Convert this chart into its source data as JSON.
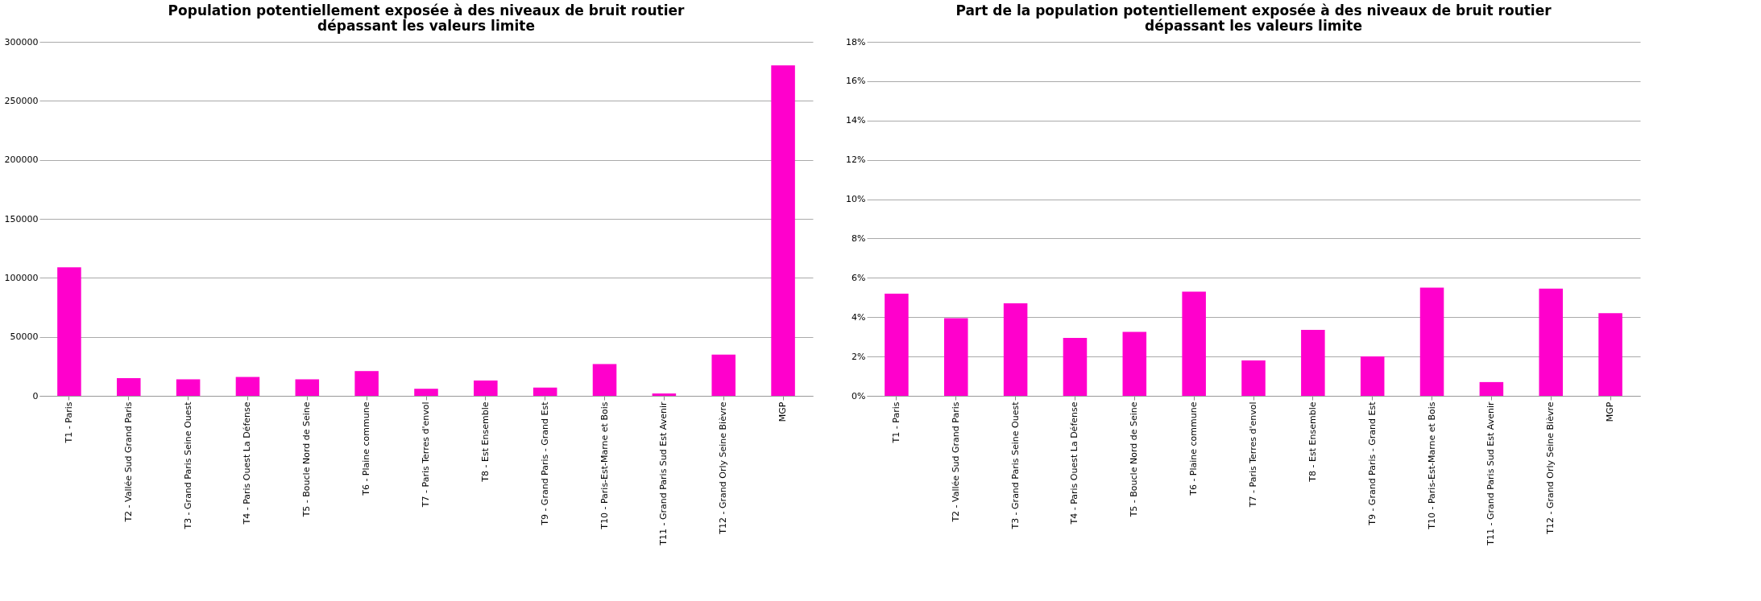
{
  "chart_data": [
    {
      "type": "bar",
      "title": "Population potentiellement exposée à des niveaux de bruit routier\ndépassant les valeurs limite",
      "categories": [
        "T1 - Paris",
        "T2 - Vallée Sud Grand Paris",
        "T3 - Grand Paris Seine Ouest",
        "T4 - Paris Ouest La Défense",
        "T5 - Boucle Nord de Seine",
        "T6 - Plaine commune",
        "T7 - Paris Terres d'envol",
        "T8 - Est Ensemble",
        "T9 - Grand Paris - Grand Est",
        "T10 - Paris-Est-Marne et Bois",
        "T11 - Grand Paris Sud Est Avenir",
        "T12 - Grand Orly Seine Bièvre",
        "MGP"
      ],
      "values": [
        109000,
        15000,
        14000,
        16000,
        14000,
        21000,
        6000,
        13000,
        7000,
        27000,
        2000,
        35000,
        280000
      ],
      "color": "#ff00cc",
      "ylim": [
        0,
        300000
      ],
      "yticks": [
        0,
        50000,
        100000,
        150000,
        200000,
        250000,
        300000
      ],
      "grid": "y"
    },
    {
      "type": "bar",
      "title": "Part de la population potentiellement exposée à des niveaux de bruit routier\ndépassant les valeurs limite",
      "categories": [
        "T1 - Paris",
        "T2 - Vallée Sud Grand Paris",
        "T3 - Grand Paris Seine Ouest",
        "T4 - Paris Ouest La Défense",
        "T5 - Boucle Nord de Seine",
        "T6 - Plaine commune",
        "T7 - Paris Terres d'envol",
        "T8 - Est Ensemble",
        "T9 - Grand Paris - Grand Est",
        "T10 - Paris-Est-Marne et Bois",
        "T11 - Grand Paris Sud Est Avenir",
        "T12 - Grand Orly Seine Bièvre",
        "MGP"
      ],
      "values": [
        5.2,
        3.95,
        4.7,
        2.95,
        3.25,
        5.3,
        1.8,
        3.35,
        2.0,
        5.5,
        0.7,
        5.45,
        4.2
      ],
      "color": "#ff00cc",
      "ylim": [
        0,
        18
      ],
      "yticks": [
        {
          "value": 0,
          "label": "0%"
        },
        {
          "value": 2,
          "label": "2%"
        },
        {
          "value": 4,
          "label": "4%"
        },
        {
          "value": 6,
          "label": "6%"
        },
        {
          "value": 8,
          "label": "8%"
        },
        {
          "value": 10,
          "label": "10%"
        },
        {
          "value": 12,
          "label": "12%"
        },
        {
          "value": 14,
          "label": "14%"
        },
        {
          "value": 16,
          "label": "16%"
        },
        {
          "value": 18,
          "label": "18%"
        }
      ],
      "grid": "y"
    }
  ]
}
